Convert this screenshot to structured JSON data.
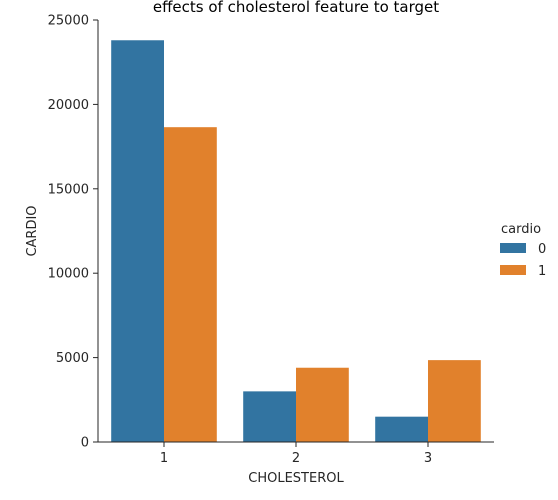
{
  "chart_data": {
    "type": "bar",
    "title": "effects of cholesterol feature to target",
    "xlabel": "CHOLESTEROL",
    "ylabel": "CARDIO",
    "categories": [
      "1",
      "2",
      "3"
    ],
    "series": [
      {
        "name": "0",
        "values": [
          23800,
          3000,
          1500
        ],
        "color": "#3274a1"
      },
      {
        "name": "1",
        "values": [
          18650,
          4400,
          4850
        ],
        "color": "#e1812c"
      }
    ],
    "ylim": [
      0,
      25000
    ],
    "yticks": [
      0,
      5000,
      10000,
      15000,
      20000,
      25000
    ],
    "grid": false,
    "legend": {
      "title": "cardio",
      "position": "right"
    }
  }
}
